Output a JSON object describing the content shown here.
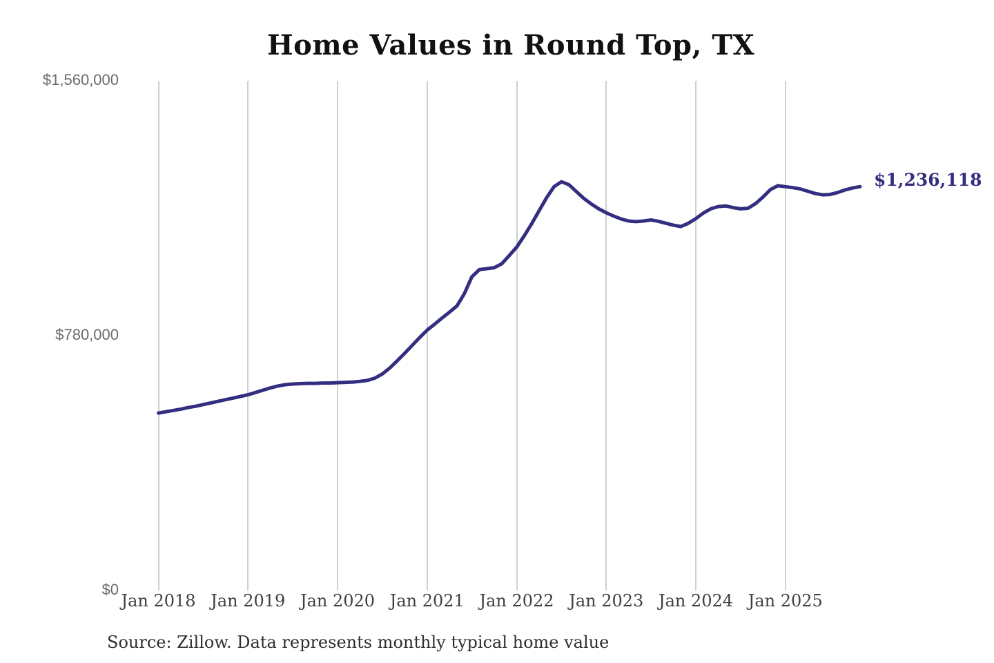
{
  "chart_data": {
    "type": "line",
    "title": "Home Values in Round Top, TX",
    "source_note": "Source: Zillow. Data represents monthly typical home value",
    "end_label": "$1,236,118",
    "final_value": 1236118,
    "x_tick_labels": [
      "Jan 2018",
      "Jan 2019",
      "Jan 2020",
      "Jan 2021",
      "Jan 2022",
      "Jan 2023",
      "Jan 2024",
      "Jan 2025"
    ],
    "y_tick_labels": [
      "$0",
      "$780,000",
      "$1,560,000"
    ],
    "y_tick_values": [
      0,
      780000,
      1560000
    ],
    "ylim": [
      0,
      1560000
    ],
    "grid": "vertical-only",
    "legend": "none",
    "series": [
      {
        "name": "Monthly typical home value",
        "start_month": "Jan 2018",
        "frequency": "monthly",
        "values": [
          543000,
          547000,
          551000,
          555000,
          560000,
          564000,
          569000,
          574000,
          579000,
          584000,
          589000,
          594000,
          599000,
          606000,
          613000,
          620000,
          626000,
          630000,
          632000,
          633000,
          634000,
          634000,
          635000,
          635000,
          636000,
          637000,
          638000,
          640000,
          643000,
          650000,
          663000,
          681000,
          703000,
          726000,
          750000,
          774000,
          797000,
          815000,
          834000,
          852000,
          871000,
          909000,
          960000,
          982000,
          985000,
          988000,
          1000000,
          1025000,
          1051000,
          1085000,
          1122000,
          1162000,
          1202000,
          1236000,
          1251000,
          1242000,
          1221000,
          1200000,
          1183000,
          1168000,
          1156000,
          1146000,
          1137000,
          1131000,
          1129000,
          1131000,
          1134000,
          1130000,
          1124000,
          1118000,
          1114000,
          1124000,
          1138000,
          1155000,
          1168000,
          1175000,
          1177000,
          1172000,
          1168000,
          1170000,
          1184000,
          1204000,
          1227000,
          1239000,
          1236000,
          1233000,
          1229000,
          1222000,
          1215000,
          1211000,
          1212000,
          1218000,
          1226000,
          1232000,
          1236118
        ]
      }
    ],
    "colors": {
      "line": "#332e80",
      "grid": "#cfcfcf",
      "title_text": "#111111",
      "y_tick_text": "#6b6b6b",
      "x_tick_text": "#3f3f3f",
      "end_label_text": "#332e80",
      "source_text": "#2e2e2e",
      "background": "#ffffff"
    }
  }
}
